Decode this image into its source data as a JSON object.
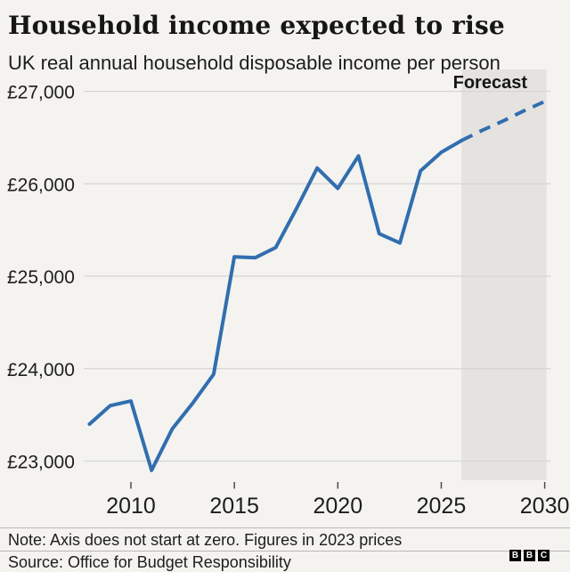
{
  "header": {
    "title": "Household income expected to rise",
    "subtitle": "UK real annual household disposable income per person"
  },
  "chart_data": {
    "type": "line",
    "title": "Household income expected to rise",
    "subtitle": "UK real annual household disposable income per person",
    "currency": "GBP",
    "grid": "horizontal",
    "legend_position": "none",
    "line_color": "#316eae",
    "grid_color": "#d6d5d3",
    "band_color": "#e4e3e0",
    "xlim": [
      2008,
      2030
    ],
    "ylim": [
      22800,
      27150
    ],
    "y_ticks": [
      {
        "value": 27000,
        "label": "£27,000"
      },
      {
        "value": 26000,
        "label": "£26,000"
      },
      {
        "value": 25000,
        "label": "£25,000"
      },
      {
        "value": 24000,
        "label": "£24,000"
      },
      {
        "value": 23000,
        "label": "£23,000"
      }
    ],
    "x_ticks": [
      {
        "value": 2010,
        "label": "2010"
      },
      {
        "value": 2015,
        "label": "2015"
      },
      {
        "value": 2020,
        "label": "2020"
      },
      {
        "value": 2025,
        "label": "2025"
      },
      {
        "value": 2030,
        "label": "2030"
      }
    ],
    "forecast_band": {
      "label": "Forecast",
      "start_year": 2026,
      "end_year": 2030
    },
    "series": [
      {
        "name": "actual",
        "style": "solid",
        "points": [
          [
            2008,
            23400
          ],
          [
            2009,
            23600
          ],
          [
            2010,
            23650
          ],
          [
            2011,
            22900
          ],
          [
            2012,
            23350
          ],
          [
            2013,
            23630
          ],
          [
            2014,
            23940
          ],
          [
            2015,
            25210
          ],
          [
            2016,
            25200
          ],
          [
            2017,
            25310
          ],
          [
            2018,
            25730
          ],
          [
            2019,
            26170
          ],
          [
            2020,
            25950
          ],
          [
            2021,
            26300
          ],
          [
            2022,
            25460
          ],
          [
            2023,
            25360
          ],
          [
            2024,
            26140
          ],
          [
            2025,
            26340
          ],
          [
            2026,
            26470
          ]
        ]
      },
      {
        "name": "forecast",
        "style": "dashed",
        "points": [
          [
            2026,
            26470
          ],
          [
            2027,
            26580
          ],
          [
            2028,
            26680
          ],
          [
            2029,
            26790
          ],
          [
            2030,
            26890
          ]
        ]
      }
    ]
  },
  "footer": {
    "note": "Note: Axis does not start at zero. Figures in 2023 prices",
    "source": "Source: Office for Budget Responsibility",
    "logo_letters": [
      "B",
      "B",
      "C"
    ]
  }
}
